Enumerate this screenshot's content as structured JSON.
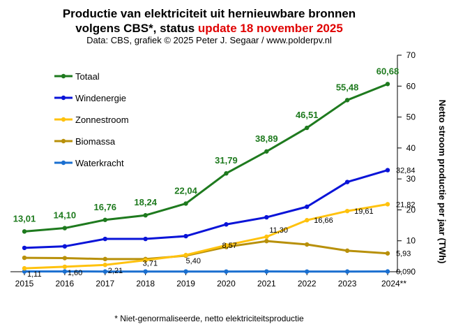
{
  "chart_data": {
    "type": "line",
    "title_line1": "Productie van elektriciteit  uit hernieuwbare bronnen",
    "title_line2_black": "volgens CBS*, status ",
    "title_line2_red": "update 18 november 2025",
    "subtitle": "Data: CBS, grafiek © 2025 Peter J. Segaar / www.polderpv.nl",
    "ylabel": "Netto stroom productie per jaar (TWh)",
    "footnote": "* Niet-genormaliseerde,  netto elektriciteitsproductie",
    "x_labels": [
      "2015",
      "2016",
      "2017",
      "2018",
      "2019",
      "2020",
      "2021",
      "2022",
      "2023",
      "2024**"
    ],
    "x": [
      2015,
      2016,
      2017,
      2018,
      2019,
      2020,
      2021,
      2022,
      2023,
      2024
    ],
    "ylim": [
      0,
      70
    ],
    "yticks": [
      0,
      10,
      20,
      30,
      40,
      50,
      60,
      70
    ],
    "grid": false,
    "legend_position": "top-left",
    "series": [
      {
        "name": "Totaal",
        "color": "#1e7a1e",
        "values": [
          13.01,
          14.1,
          16.76,
          18.24,
          22.04,
          31.79,
          38.89,
          46.51,
          55.48,
          60.68
        ],
        "labels": [
          "13,01",
          "14,10",
          "16,76",
          "18,24",
          "22,04",
          "31,79",
          "38,89",
          "46,51",
          "55,48",
          "60,68"
        ]
      },
      {
        "name": "Windenergie",
        "color": "#0a14d8",
        "values": [
          7.7,
          8.2,
          10.6,
          10.6,
          11.5,
          15.3,
          17.6,
          21.0,
          29.0,
          32.84
        ],
        "labels": [
          "",
          "",
          "",
          "",
          "",
          "",
          "",
          "",
          "",
          "32,84"
        ]
      },
      {
        "name": "Zonnestroom",
        "color": "#ffc20e",
        "values": [
          1.11,
          1.6,
          2.21,
          3.71,
          5.4,
          8.57,
          11.3,
          16.66,
          19.61,
          21.82
        ],
        "labels": [
          "1,11",
          "1,60",
          "2,21",
          "3,71",
          "5,40",
          "8,57",
          "11,30",
          "16,66",
          "19,61",
          "21,82"
        ]
      },
      {
        "name": "Biomassa",
        "color": "#b8900a",
        "values": [
          4.5,
          4.4,
          4.1,
          4.1,
          5.2,
          8.0,
          9.9,
          8.8,
          6.8,
          5.93
        ],
        "labels": [
          "",
          "",
          "",
          "",
          "",
          "",
          "",
          "",
          "",
          "5,93"
        ]
      },
      {
        "name": "Waterkracht",
        "color": "#1a6fd0",
        "values": [
          0.09,
          0.09,
          0.06,
          0.07,
          0.07,
          0.05,
          0.08,
          0.05,
          0.06,
          0.09
        ],
        "labels": [
          "",
          "",
          "",
          "",
          "",
          "",
          "",
          "",
          "",
          "0,09"
        ]
      }
    ]
  }
}
